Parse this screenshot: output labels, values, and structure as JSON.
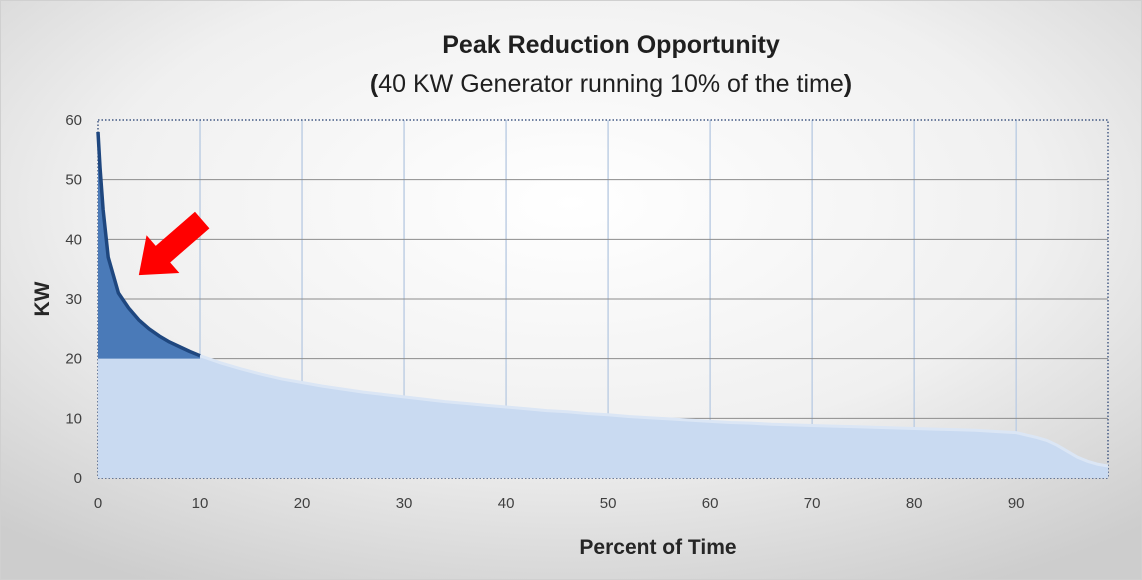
{
  "chart_data": {
    "type": "area",
    "title": "Peak Reduction Opportunity",
    "subtitle": {
      "open": "(",
      "text": "40 KW Generator running  10% of the time",
      "close": ")"
    },
    "xlabel": "Percent of Time",
    "ylabel": "KW",
    "xlim": [
      0,
      99
    ],
    "ylim": [
      0,
      60
    ],
    "xticks": [
      0,
      10,
      20,
      30,
      40,
      50,
      60,
      70,
      80,
      90
    ],
    "yticks": [
      0,
      10,
      20,
      30,
      40,
      50,
      60
    ],
    "grid": true,
    "generator_threshold_kw": 20,
    "generator_runtime_percent": 10,
    "series": [
      {
        "color": "#c9daf1",
        "line_color": "#dbe6f5",
        "x": [
          0,
          0.2,
          0.5,
          1,
          1.5,
          2,
          3,
          4,
          5,
          6,
          7,
          8,
          9,
          10,
          12,
          14,
          16,
          18,
          20,
          22,
          24,
          26,
          28,
          30,
          32,
          34,
          36,
          38,
          40,
          42,
          44,
          46,
          48,
          50,
          52,
          54,
          56,
          58,
          60,
          62,
          64,
          66,
          68,
          70,
          72,
          74,
          76,
          78,
          80,
          82,
          84,
          86,
          88,
          90,
          91,
          92,
          93,
          94,
          95,
          96,
          97,
          98,
          99
        ],
        "values": [
          58,
          52,
          45,
          37,
          34,
          31,
          28.5,
          26.5,
          25,
          23.8,
          22.8,
          22,
          21.2,
          20.5,
          19.3,
          18.3,
          17.4,
          16.6,
          16,
          15.4,
          14.9,
          14.4,
          14,
          13.6,
          13.2,
          12.8,
          12.5,
          12.2,
          11.9,
          11.6,
          11.3,
          11.1,
          10.8,
          10.6,
          10.3,
          10.1,
          9.9,
          9.7,
          9.5,
          9.3,
          9.2,
          9,
          8.9,
          8.8,
          8.7,
          8.6,
          8.5,
          8.4,
          8.3,
          8.2,
          8.1,
          8,
          7.8,
          7.6,
          7.2,
          6.8,
          6.3,
          5.5,
          4.5,
          3.5,
          2.8,
          2.3,
          2
        ]
      }
    ],
    "peak_area": {
      "color": "#4a7ab8",
      "line_color": "#1f477f",
      "x": [
        0,
        0.2,
        0.5,
        1,
        1.5,
        2,
        3,
        4,
        5,
        6,
        7,
        8,
        9,
        10
      ],
      "values": [
        58,
        52,
        45,
        37,
        34,
        31,
        28.5,
        26.5,
        25,
        23.8,
        22.8,
        22,
        21.2,
        20.5
      ],
      "base": 20
    },
    "annotation": {
      "type": "arrow",
      "color": "#ff0000",
      "points_to_x": 4,
      "points_to_y": 34
    },
    "colors": {
      "background_light": "#ffffff",
      "background_dark": "#cfcfcf",
      "grid": "#bfcfe4",
      "grid_h": "#8c8c8c"
    }
  }
}
